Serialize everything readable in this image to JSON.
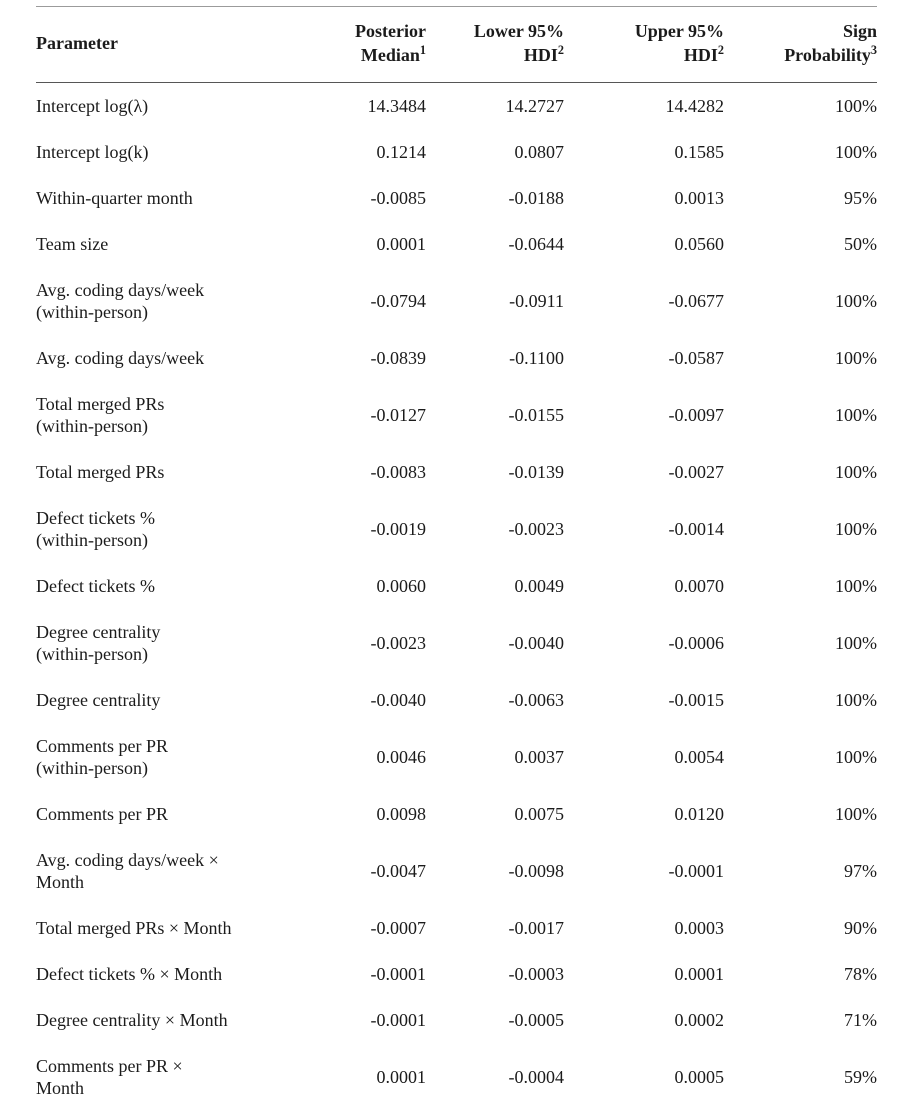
{
  "table": {
    "headers": [
      {
        "line1": "Parameter"
      },
      {
        "line1": "Posterior",
        "line2": "Median",
        "sup": "1"
      },
      {
        "line1": "Lower 95%",
        "line2": "HDI",
        "sup": "2"
      },
      {
        "line1": "Upper 95%",
        "line2": "HDI",
        "sup": "2"
      },
      {
        "line1": "Sign",
        "line2": "Probability",
        "sup": "3"
      }
    ],
    "rows": [
      {
        "parameter_lines": [
          "Intercept log(λ)"
        ],
        "posterior_median": "14.3484",
        "lower_hdi": "14.2727",
        "upper_hdi": "14.4282",
        "sign_probability": "100%"
      },
      {
        "parameter_lines": [
          "Intercept log(k)"
        ],
        "posterior_median": "0.1214",
        "lower_hdi": "0.0807",
        "upper_hdi": "0.1585",
        "sign_probability": "100%"
      },
      {
        "parameter_lines": [
          "Within-quarter month"
        ],
        "posterior_median": "-0.0085",
        "lower_hdi": "-0.0188",
        "upper_hdi": "0.0013",
        "sign_probability": "95%"
      },
      {
        "parameter_lines": [
          "Team size"
        ],
        "posterior_median": "0.0001",
        "lower_hdi": "-0.0644",
        "upper_hdi": "0.0560",
        "sign_probability": "50%"
      },
      {
        "parameter_lines": [
          "Avg. coding days/week",
          "(within-person)"
        ],
        "posterior_median": "-0.0794",
        "lower_hdi": "-0.0911",
        "upper_hdi": "-0.0677",
        "sign_probability": "100%"
      },
      {
        "parameter_lines": [
          "Avg. coding days/week"
        ],
        "posterior_median": "-0.0839",
        "lower_hdi": "-0.1100",
        "upper_hdi": "-0.0587",
        "sign_probability": "100%"
      },
      {
        "parameter_lines": [
          "Total merged PRs",
          "(within-person)"
        ],
        "posterior_median": "-0.0127",
        "lower_hdi": "-0.0155",
        "upper_hdi": "-0.0097",
        "sign_probability": "100%"
      },
      {
        "parameter_lines": [
          "Total merged PRs"
        ],
        "posterior_median": "-0.0083",
        "lower_hdi": "-0.0139",
        "upper_hdi": "-0.0027",
        "sign_probability": "100%"
      },
      {
        "parameter_lines": [
          "Defect tickets %",
          "(within-person)"
        ],
        "posterior_median": "-0.0019",
        "lower_hdi": "-0.0023",
        "upper_hdi": "-0.0014",
        "sign_probability": "100%"
      },
      {
        "parameter_lines": [
          "Defect tickets %"
        ],
        "posterior_median": "0.0060",
        "lower_hdi": "0.0049",
        "upper_hdi": "0.0070",
        "sign_probability": "100%"
      },
      {
        "parameter_lines": [
          "Degree centrality",
          "(within-person)"
        ],
        "posterior_median": "-0.0023",
        "lower_hdi": "-0.0040",
        "upper_hdi": "-0.0006",
        "sign_probability": "100%"
      },
      {
        "parameter_lines": [
          "Degree centrality"
        ],
        "posterior_median": "-0.0040",
        "lower_hdi": "-0.0063",
        "upper_hdi": "-0.0015",
        "sign_probability": "100%"
      },
      {
        "parameter_lines": [
          "Comments per PR",
          "(within-person)"
        ],
        "posterior_median": "0.0046",
        "lower_hdi": "0.0037",
        "upper_hdi": "0.0054",
        "sign_probability": "100%"
      },
      {
        "parameter_lines": [
          "Comments per PR"
        ],
        "posterior_median": "0.0098",
        "lower_hdi": "0.0075",
        "upper_hdi": "0.0120",
        "sign_probability": "100%"
      },
      {
        "parameter_lines": [
          "Avg. coding days/week ×",
          "Month"
        ],
        "posterior_median": "-0.0047",
        "lower_hdi": "-0.0098",
        "upper_hdi": "-0.0001",
        "sign_probability": "97%"
      },
      {
        "parameter_lines": [
          "Total merged PRs × Month"
        ],
        "posterior_median": "-0.0007",
        "lower_hdi": "-0.0017",
        "upper_hdi": "0.0003",
        "sign_probability": "90%"
      },
      {
        "parameter_lines": [
          "Defect tickets % × Month"
        ],
        "posterior_median": "-0.0001",
        "lower_hdi": "-0.0003",
        "upper_hdi": "0.0001",
        "sign_probability": "78%"
      },
      {
        "parameter_lines": [
          "Degree centrality × Month"
        ],
        "posterior_median": "-0.0001",
        "lower_hdi": "-0.0005",
        "upper_hdi": "0.0002",
        "sign_probability": "71%"
      },
      {
        "parameter_lines": [
          "Comments per PR ×",
          "Month"
        ],
        "posterior_median": "0.0001",
        "lower_hdi": "-0.0004",
        "upper_hdi": "0.0005",
        "sign_probability": "59%"
      }
    ],
    "colors": {
      "text": "#1b1b1b",
      "rule_top": "#9b9b9b",
      "rule_header": "#565656",
      "rule_bottom": "#8c8c8c"
    }
  }
}
